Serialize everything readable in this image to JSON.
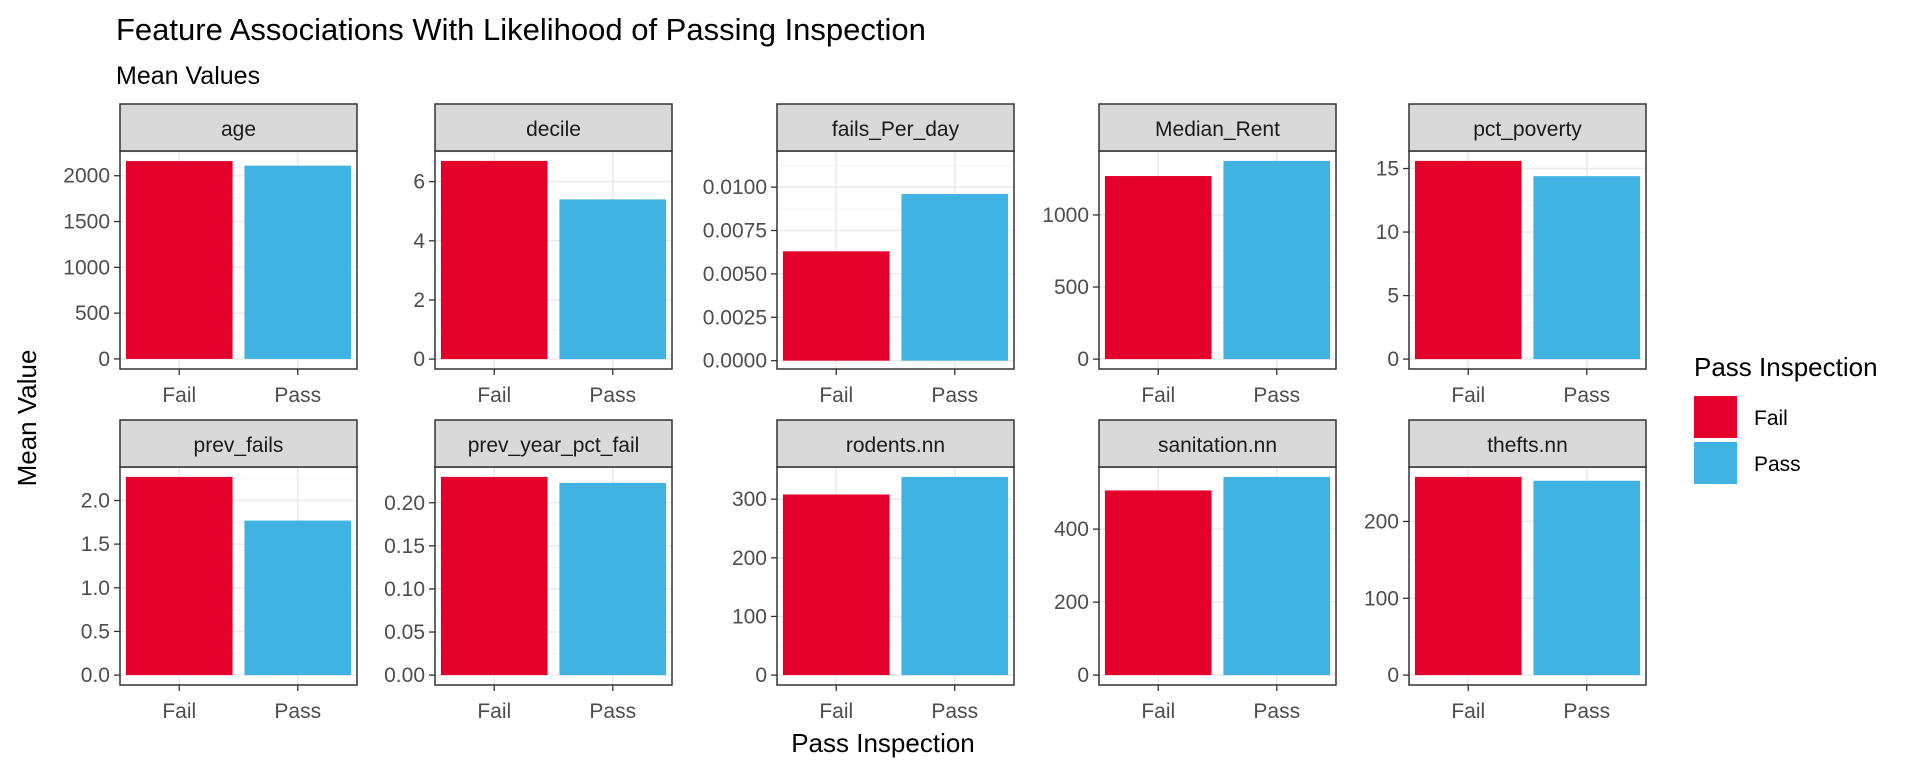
{
  "chart_data": {
    "type": "bar",
    "title": "Feature Associations With Likelihood of Passing Inspection",
    "subtitle": "Mean Values",
    "xlabel": "Pass Inspection",
    "ylabel": "Mean Value",
    "categories": [
      "Fail",
      "Pass"
    ],
    "legend": {
      "title": "Pass Inspection",
      "position": "right",
      "items": [
        {
          "label": "Fail",
          "color": "#E4002B"
        },
        {
          "label": "Pass",
          "color": "#41B3E3"
        }
      ]
    },
    "grid": true,
    "facets": [
      {
        "name": "age",
        "values": [
          2160,
          2110
        ],
        "ylim": [
          -110,
          2270
        ],
        "ticks": [
          0,
          500,
          1000,
          1500,
          2000
        ],
        "tick_labels": [
          "0",
          "500",
          "1000",
          "1500",
          "2000"
        ]
      },
      {
        "name": "decile",
        "values": [
          6.7,
          5.4
        ],
        "ylim": [
          -0.335,
          7.035
        ],
        "ticks": [
          0,
          2,
          4,
          6
        ],
        "tick_labels": [
          "0",
          "2",
          "4",
          "6"
        ]
      },
      {
        "name": "fails_Per_day",
        "values": [
          0.0063,
          0.0096
        ],
        "ylim": [
          -0.00048,
          0.01208
        ],
        "ticks": [
          0,
          0.0025,
          0.005,
          0.0075,
          0.01
        ],
        "tick_labels": [
          "0.0000",
          "0.0025",
          "0.0050",
          "0.0075",
          "0.0100"
        ]
      },
      {
        "name": "Median_Rent",
        "values": [
          1270,
          1375
        ],
        "ylim": [
          -68.75,
          1443.75
        ],
        "ticks": [
          0,
          500,
          1000
        ],
        "tick_labels": [
          "0",
          "500",
          "1000"
        ]
      },
      {
        "name": "pct_poverty",
        "values": [
          15.6,
          14.4
        ],
        "ylim": [
          -0.78,
          16.38
        ],
        "ticks": [
          0,
          5,
          10,
          15
        ],
        "tick_labels": [
          "0",
          "5",
          "10",
          "15"
        ]
      },
      {
        "name": "prev_fails",
        "values": [
          2.27,
          1.77
        ],
        "ylim": [
          -0.1135,
          2.3835
        ],
        "ticks": [
          0,
          0.5,
          1,
          1.5,
          2
        ],
        "tick_labels": [
          "0.0",
          "0.5",
          "1.0",
          "1.5",
          "2.0"
        ]
      },
      {
        "name": "prev_year_pct_fail",
        "values": [
          0.23,
          0.223
        ],
        "ylim": [
          -0.0115,
          0.2415
        ],
        "ticks": [
          0,
          0.05,
          0.1,
          0.15,
          0.2
        ],
        "tick_labels": [
          "0.00",
          "0.05",
          "0.10",
          "0.15",
          "0.20"
        ]
      },
      {
        "name": "rodents.nn",
        "values": [
          308,
          338
        ],
        "ylim": [
          -16.9,
          354.9
        ],
        "ticks": [
          0,
          100,
          200,
          300
        ],
        "tick_labels": [
          "0",
          "100",
          "200",
          "300"
        ]
      },
      {
        "name": "sanitation.nn",
        "values": [
          506,
          543
        ],
        "ylim": [
          -27.15,
          570.15
        ],
        "ticks": [
          0,
          200,
          400
        ],
        "tick_labels": [
          "0",
          "200",
          "400"
        ]
      },
      {
        "name": "thefts.nn",
        "values": [
          258,
          253
        ],
        "ylim": [
          -12.9,
          270.9
        ],
        "ticks": [
          0,
          100,
          200
        ],
        "tick_labels": [
          "0",
          "100",
          "200"
        ]
      }
    ]
  }
}
